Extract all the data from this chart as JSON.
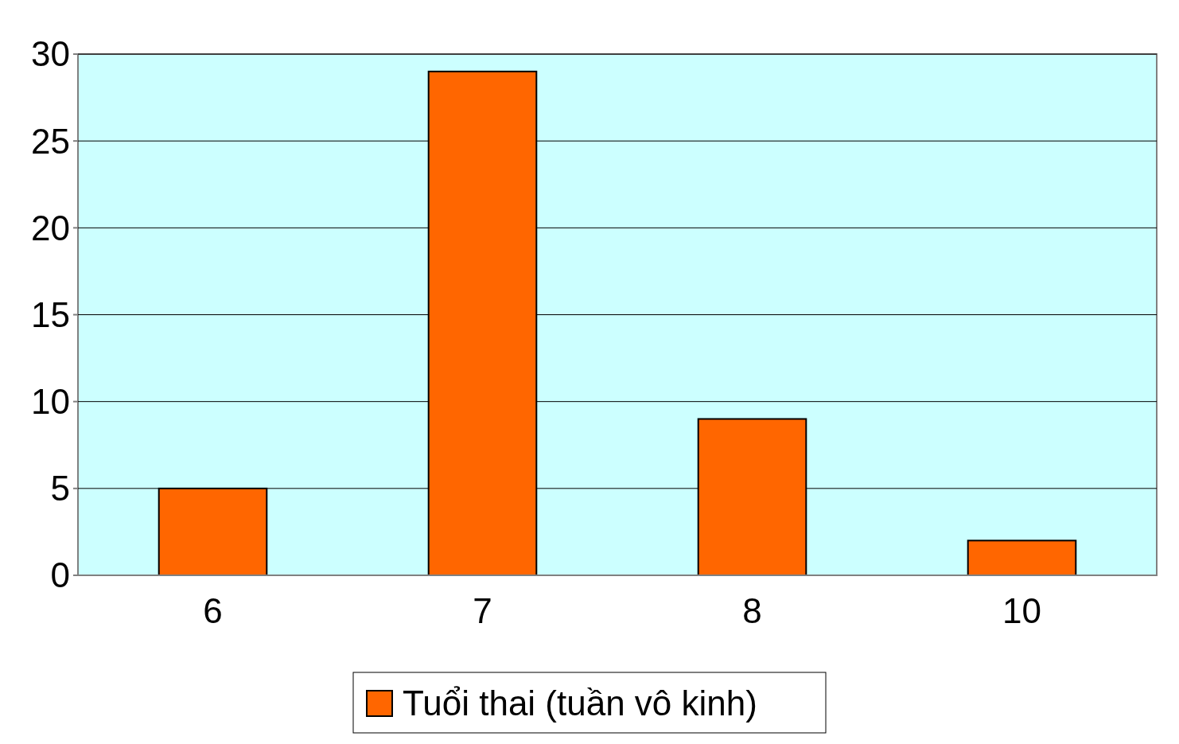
{
  "chart_data": {
    "type": "bar",
    "categories": [
      "6",
      "7",
      "8",
      "10"
    ],
    "series": [
      {
        "name": "Tuổi thai (tuần vô kinh)",
        "color": "#ff6600",
        "values": [
          5,
          29,
          9,
          2
        ]
      }
    ],
    "ylim": [
      0,
      30
    ],
    "yticks": [
      0,
      5,
      10,
      15,
      20,
      25,
      30
    ],
    "grid": "y",
    "legend": "bottom"
  }
}
